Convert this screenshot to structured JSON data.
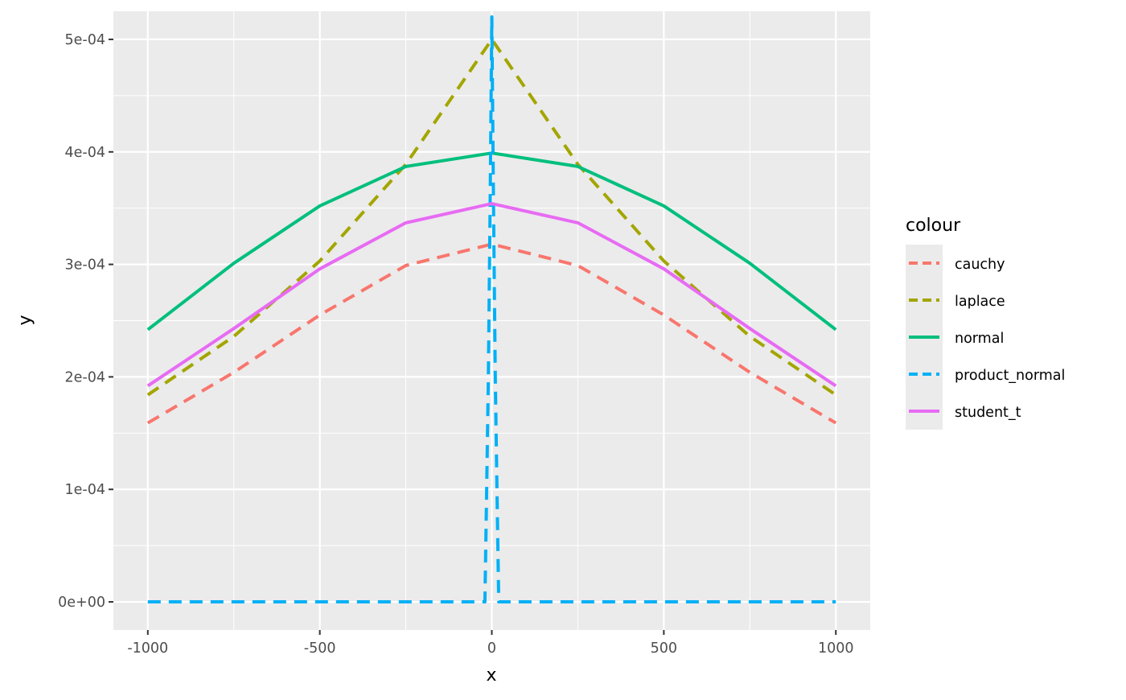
{
  "chart_data": {
    "type": "line",
    "title": "",
    "xlabel": "x",
    "ylabel": "y",
    "xlim": [
      -1100,
      1100
    ],
    "ylim": [
      -2.5e-05,
      0.000525
    ],
    "x_ticks": [
      -1000,
      -500,
      0,
      500,
      1000
    ],
    "x_tick_labels": [
      "-1000",
      "-500",
      "0",
      "500",
      "1000"
    ],
    "y_ticks": [
      0,
      0.0001,
      0.0002,
      0.0003,
      0.0004,
      0.0005
    ],
    "y_tick_labels": [
      "0e+00",
      "1e-04",
      "2e-04",
      "3e-04",
      "4e-04",
      "5e-04"
    ],
    "grid": true,
    "legend": {
      "title": "colour",
      "placement": "right"
    },
    "series": [
      {
        "name": "cauchy",
        "color": "#F8766D",
        "dashed": true,
        "x": [
          -1000,
          -750,
          -500,
          -250,
          0,
          250,
          500,
          750,
          1000
        ],
        "y": [
          0.000159,
          0.000204,
          0.000255,
          0.000299,
          0.000318,
          0.000299,
          0.000255,
          0.000204,
          0.000159
        ]
      },
      {
        "name": "laplace",
        "color": "#A3A500",
        "dashed": true,
        "x": [
          -1000,
          -750,
          -500,
          -250,
          0,
          250,
          500,
          750,
          1000
        ],
        "y": [
          0.000184,
          0.000236,
          0.000303,
          0.000389,
          0.0005,
          0.000389,
          0.000303,
          0.000236,
          0.000184
        ]
      },
      {
        "name": "normal",
        "color": "#00BF7D",
        "dashed": false,
        "x": [
          -1000,
          -750,
          -500,
          -250,
          0,
          250,
          500,
          750,
          1000
        ],
        "y": [
          0.000242,
          0.000301,
          0.000352,
          0.000387,
          0.000399,
          0.000387,
          0.000352,
          0.000301,
          0.000242
        ]
      },
      {
        "name": "product_normal",
        "color": "#00B0F6",
        "dashed": true,
        "x": [
          -1000,
          -20,
          -15,
          -10,
          -5,
          0,
          5,
          10,
          15,
          20,
          1000
        ],
        "y": [
          0,
          0,
          0.0001,
          0.0002,
          0.00035,
          0.00052,
          0.00035,
          0.0002,
          0.0001,
          0,
          0
        ]
      },
      {
        "name": "student_t",
        "color": "#E76BF3",
        "dashed": false,
        "x": [
          -1000,
          -750,
          -500,
          -250,
          0,
          250,
          500,
          750,
          1000
        ],
        "y": [
          0.000192,
          0.000243,
          0.000296,
          0.000337,
          0.000354,
          0.000337,
          0.000296,
          0.000243,
          0.000192
        ]
      }
    ]
  }
}
